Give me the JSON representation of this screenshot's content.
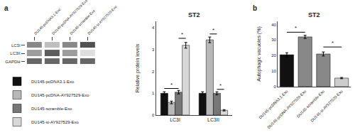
{
  "chart_data": [
    {
      "type": "heatmap",
      "annotations": [
        {
          "text": "a"
        }
      ],
      "categories": [
        "DU145-pcDNA3.1-Exo",
        "DU145-pcDNA-AY927529-Exo",
        "DU145-scramble-Exo",
        "DU145-si-AY927529-Exo"
      ],
      "rows": [
        "LC3I",
        "LC3II",
        "GAPDH"
      ],
      "values": [
        [
          0.55,
          0.3,
          0.55,
          0.8
        ],
        [
          0.45,
          0.75,
          0.45,
          0.15
        ],
        [
          0.7,
          0.7,
          0.7,
          0.7
        ]
      ],
      "zlim": [
        0,
        1
      ],
      "grid": false
    },
    {
      "type": "bar",
      "title": "ST2",
      "ylabel": "Relative protein levels",
      "categories": [
        "LC3I",
        "LC3II"
      ],
      "series": [
        {
          "name": "DU145-pcDNA3.1-Exo",
          "color": "#111111",
          "values": [
            1.0,
            1.0
          ],
          "errors": [
            0.07,
            0.07
          ]
        },
        {
          "name": "DU145-pcDNA-AY927529-Exo",
          "color": "#b8b8b8",
          "values": [
            0.58,
            3.45
          ],
          "errors": [
            0.06,
            0.13
          ]
        },
        {
          "name": "DU145-scramble-Exo",
          "color": "#777777",
          "values": [
            1.05,
            1.0
          ],
          "errors": [
            0.08,
            0.07
          ]
        },
        {
          "name": "DU145-si-AY927529-Exo",
          "color": "#d8d8d8",
          "values": [
            3.2,
            0.22
          ],
          "errors": [
            0.13,
            0.03
          ]
        }
      ],
      "annotations": [
        {
          "text": "*",
          "category": "LC3I",
          "from": "DU145-pcDNA3.1-Exo",
          "to": "DU145-scramble-Exo",
          "y": 1.22
        },
        {
          "text": "*",
          "category": "LC3I",
          "from": "DU145-scramble-Exo",
          "to": "DU145-si-AY927529-Exo",
          "y": 3.52
        },
        {
          "text": "*",
          "category": "LC3II",
          "from": "DU145-pcDNA-AY927529-Exo",
          "to": "DU145-scramble-Exo",
          "y": 3.72
        },
        {
          "text": "*",
          "category": "LC3II",
          "from": "DU145-scramble-Exo",
          "to": "DU145-si-AY927529-Exo",
          "y": 1.18
        }
      ],
      "ylim": [
        0,
        4.3
      ],
      "yticks": [
        0,
        1,
        2,
        3,
        4
      ],
      "grid": false,
      "legend": "lower left"
    },
    {
      "type": "bar",
      "title": "ST2",
      "ylabel": "Autophagic vacuoles (%)",
      "categories": [
        "DU145-pcDNA3.1-Exo",
        "DU145-pcDNA-AY927529-Exo",
        "DU145-scramble-Exo",
        "DU145-si-AY927529-Exo"
      ],
      "values": [
        20.5,
        32.0,
        21.0,
        5.5
      ],
      "errors": [
        1.3,
        1.0,
        1.3,
        0.4
      ],
      "colors": [
        "#111111",
        "#888888",
        "#888888",
        "#cccccc"
      ],
      "annotations": [
        {
          "text": "b"
        },
        {
          "text": "*",
          "from": "DU145-pcDNA3.1-Exo",
          "to": "DU145-pcDNA-AY927529-Exo",
          "y": 35.0
        },
        {
          "text": "*",
          "from": "DU145-scramble-Exo",
          "to": "DU145-si-AY927529-Exo",
          "y": 25.5
        }
      ],
      "ylim": [
        0,
        42
      ],
      "yticks": [
        0,
        10,
        20,
        30,
        40
      ],
      "grid": false
    }
  ]
}
